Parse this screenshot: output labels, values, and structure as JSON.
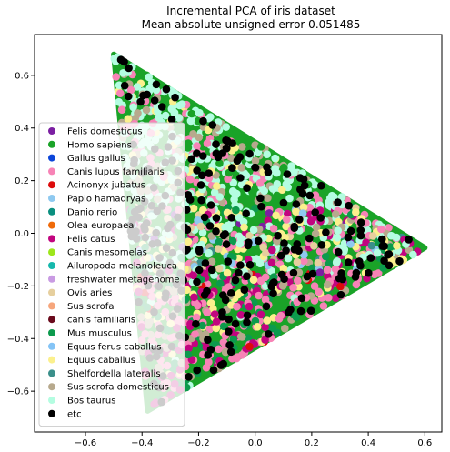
{
  "chart_data": {
    "type": "scatter",
    "title": "Incremental PCA of iris dataset",
    "subtitle": "Mean absolute unsigned error 0.051485",
    "xlabel": "",
    "ylabel": "",
    "xlim": [
      -0.78,
      0.66
    ],
    "ylim": [
      -0.755,
      0.755
    ],
    "xticks": [
      -0.6,
      -0.4,
      -0.2,
      0.0,
      0.2,
      0.4,
      0.6
    ],
    "xtick_labels": [
      "−0.6",
      "−0.4",
      "−0.2",
      "0.0",
      "0.2",
      "0.4",
      "0.6"
    ],
    "yticks": [
      0.6,
      0.4,
      0.2,
      0.0,
      -0.2,
      -0.4,
      -0.6
    ],
    "ytick_labels": [
      "0.6",
      "0.4",
      "0.2",
      "0.0",
      "−0.2",
      "−0.4",
      "−0.6"
    ],
    "grid": false,
    "legend_position": "left",
    "triangle_vertices": [
      [
        -0.5,
        0.68
      ],
      [
        0.6,
        -0.055
      ],
      [
        -0.38,
        -0.675
      ]
    ],
    "series": [
      {
        "name": "Felis domesticus",
        "color": "#7b1fa2"
      },
      {
        "name": "Homo sapiens",
        "color": "#1aa328"
      },
      {
        "name": "Gallus gallus",
        "color": "#0b45d9"
      },
      {
        "name": "Canis lupus familiaris",
        "color": "#f783b6"
      },
      {
        "name": "Acinonyx jubatus",
        "color": "#dd0b0b"
      },
      {
        "name": "Papio hamadryas",
        "color": "#8ec9f0"
      },
      {
        "name": "Danio rerio",
        "color": "#0a8f7f"
      },
      {
        "name": "Olea europaea",
        "color": "#ef6a09"
      },
      {
        "name": "Felis catus",
        "color": "#c2057f"
      },
      {
        "name": "Canis mesomelas",
        "color": "#9de61b"
      },
      {
        "name": "Ailuropoda melanoleuca",
        "color": "#16b8ac"
      },
      {
        "name": "freshwater metagenome",
        "color": "#c99be3"
      },
      {
        "name": "Ovis aries",
        "color": "#e6cf9e"
      },
      {
        "name": "Sus scrofa",
        "color": "#f6a67c"
      },
      {
        "name": "canis familiaris",
        "color": "#6a0a1c"
      },
      {
        "name": "Mus musculus",
        "color": "#0c9a4d"
      },
      {
        "name": "Equus ferus caballus",
        "color": "#84c4f6"
      },
      {
        "name": "Equus caballus",
        "color": "#fbf08d"
      },
      {
        "name": "Shelfordella lateralis",
        "color": "#3a8f8a"
      },
      {
        "name": "Sus scrofa domesticus",
        "color": "#b7a98d"
      },
      {
        "name": "Bos taurus",
        "color": "#b4fde1"
      },
      {
        "name": "etc",
        "color": "#000000"
      }
    ]
  }
}
